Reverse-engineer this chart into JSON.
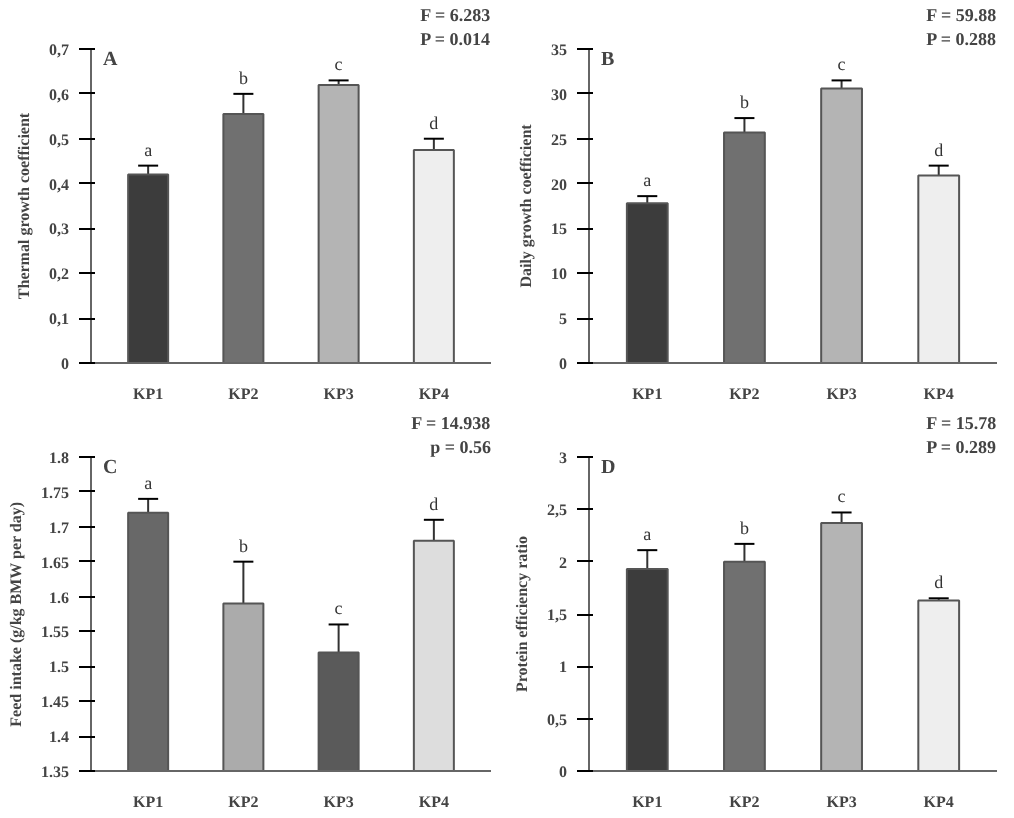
{
  "chart_data": [
    {
      "type": "bar",
      "title": "A",
      "ylabel": "Thermal growth coefficient",
      "categories": [
        "KP1",
        "KP2",
        "KP3",
        "KP4"
      ],
      "values": [
        0.42,
        0.555,
        0.62,
        0.475
      ],
      "errors": [
        0.02,
        0.045,
        0.01,
        0.025
      ],
      "colors": [
        "#3c3c3c",
        "#707070",
        "#b4b4b4",
        "#eeeeee"
      ],
      "ylim": [
        0,
        0.7
      ],
      "yticks": [
        0,
        {
          "value": 0.1,
          "label": "0,1"
        },
        {
          "value": 0.2,
          "label": "0,2"
        },
        {
          "value": 0.3,
          "label": "0,3"
        },
        {
          "value": 0.4,
          "label": "0,4"
        },
        {
          "value": 0.5,
          "label": "0,5"
        },
        {
          "value": 0.6,
          "label": "0,6"
        },
        {
          "value": 0.7,
          "label": "0,7"
        }
      ],
      "annotations": [
        "F = 6.283",
        "P = 0.014",
        {
          "text": "a",
          "x": "KP1",
          "y": 0.44
        },
        {
          "text": "b",
          "x": "KP2",
          "y": 0.6
        },
        {
          "text": "c",
          "x": "KP3",
          "y": 0.63
        },
        {
          "text": "d",
          "x": "KP4",
          "y": 0.5
        }
      ]
    },
    {
      "type": "bar",
      "title": "B",
      "ylabel": "Daily growth coefficient",
      "categories": [
        "KP1",
        "KP2",
        "KP3",
        "KP4"
      ],
      "values": [
        17.8,
        25.7,
        30.6,
        20.9
      ],
      "errors": [
        0.8,
        1.6,
        0.9,
        1.1
      ],
      "colors": [
        "#3c3c3c",
        "#707070",
        "#b4b4b4",
        "#eeeeee"
      ],
      "ylim": [
        0,
        35
      ],
      "yticks": [
        0,
        5,
        10,
        15,
        20,
        25,
        30,
        35
      ],
      "annotations": [
        "F = 59.88",
        "P = 0.288",
        {
          "text": "a",
          "x": "KP1",
          "y": 18.6
        },
        {
          "text": "b",
          "x": "KP2",
          "y": 27.3
        },
        {
          "text": "c",
          "x": "KP3",
          "y": 31.5
        },
        {
          "text": "d",
          "x": "KP4",
          "y": 22
        }
      ]
    },
    {
      "type": "bar",
      "title": "C",
      "ylabel": "Feed intake (g/kg BMW per day)",
      "categories": [
        "KP1",
        "KP2",
        "KP3",
        "KP4"
      ],
      "values": [
        1.72,
        1.59,
        1.52,
        1.68
      ],
      "errors": [
        0.02,
        0.06,
        0.04,
        0.03
      ],
      "colors": [
        "#686868",
        "#ababab",
        "#5a5a5a",
        "#dddddd"
      ],
      "ylim": [
        1.35,
        1.8
      ],
      "yticks": [
        1.35,
        1.4,
        1.45,
        1.5,
        1.55,
        1.6,
        1.65,
        1.7,
        1.75,
        1.8
      ],
      "annotations": [
        "F = 14.938",
        "p = 0.56",
        {
          "text": "a",
          "x": "KP1",
          "y": 1.74
        },
        {
          "text": "b",
          "x": "KP2",
          "y": 1.65
        },
        {
          "text": "c",
          "x": "KP3",
          "y": 1.56
        },
        {
          "text": "d",
          "x": "KP4",
          "y": 1.71
        }
      ]
    },
    {
      "type": "bar",
      "title": "D",
      "ylabel": "Protein efficiency ratio",
      "categories": [
        "KP1",
        "KP2",
        "KP3",
        "KP4"
      ],
      "values": [
        1.93,
        2.0,
        2.37,
        1.63
      ],
      "errors": [
        0.18,
        0.17,
        0.1,
        0.02
      ],
      "colors": [
        "#3c3c3c",
        "#707070",
        "#b4b4b4",
        "#eeeeee"
      ],
      "ylim": [
        0,
        3
      ],
      "yticks": [
        0,
        {
          "value": 0.5,
          "label": "0,5"
        },
        1,
        {
          "value": 1.5,
          "label": "1,5"
        },
        2,
        {
          "value": 2.5,
          "label": "2,5"
        },
        3
      ],
      "annotations": [
        "F = 15.78",
        "P = 0.289",
        {
          "text": "a",
          "x": "KP1",
          "y": 2.11
        },
        {
          "text": "b",
          "x": "KP2",
          "y": 2.17
        },
        {
          "text": "c",
          "x": "KP3",
          "y": 2.47
        },
        {
          "text": "d",
          "x": "KP4",
          "y": 1.65
        }
      ]
    }
  ]
}
